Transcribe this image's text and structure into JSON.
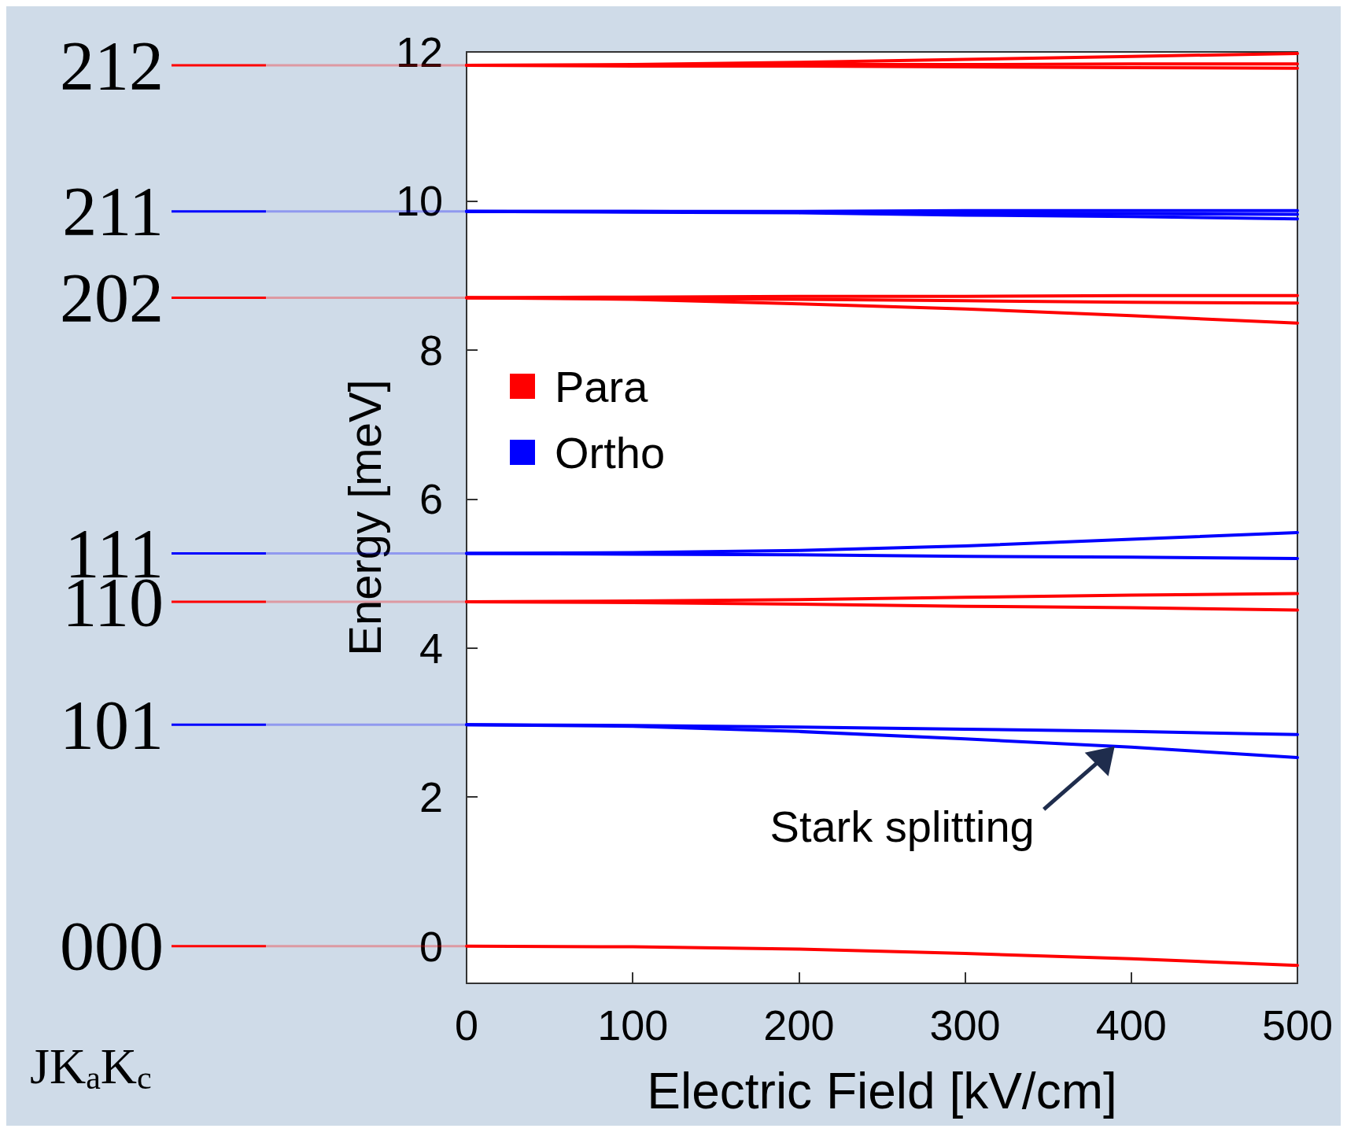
{
  "chart_data": {
    "type": "line",
    "xlabel": "Electric Field [kV/cm]",
    "ylabel": "Energy [meV]",
    "xlim": [
      0,
      500
    ],
    "xticks": [
      0,
      100,
      200,
      300,
      400,
      500
    ],
    "ylim": [
      -0.5,
      12
    ],
    "yticks": [
      0,
      2,
      4,
      6,
      8,
      10,
      12
    ],
    "grid": false,
    "legend": "top left",
    "marker": "none",
    "line_style": "solid",
    "x": [
      0,
      100,
      200,
      300,
      400,
      500
    ],
    "series": [
      {
        "name": "Para",
        "color": "#ff0000",
        "values": [
          0,
          -0.01,
          -0.04,
          -0.1,
          -0.17,
          -0.26
        ]
      },
      {
        "name": "Ortho",
        "color": "#0000ff",
        "values": [
          2.97,
          2.95,
          2.88,
          2.78,
          2.67,
          2.53
        ]
      },
      {
        "color": "#0000ff",
        "values": [
          2.97,
          2.96,
          2.94,
          2.91,
          2.88,
          2.84
        ]
      },
      {
        "color": "#ff0000",
        "values": [
          4.62,
          4.63,
          4.65,
          4.68,
          4.71,
          4.73
        ]
      },
      {
        "color": "#ff0000",
        "values": [
          4.62,
          4.61,
          4.59,
          4.56,
          4.54,
          4.51
        ]
      },
      {
        "color": "#0000ff",
        "values": [
          5.27,
          5.28,
          5.31,
          5.37,
          5.46,
          5.55
        ]
      },
      {
        "color": "#0000ff",
        "values": [
          5.27,
          5.26,
          5.25,
          5.23,
          5.22,
          5.2
        ]
      },
      {
        "color": "#ff0000",
        "values": [
          8.7,
          8.71,
          8.72,
          8.72,
          8.73,
          8.73
        ]
      },
      {
        "color": "#ff0000",
        "values": [
          8.7,
          8.69,
          8.68,
          8.66,
          8.64,
          8.63
        ]
      },
      {
        "color": "#ff0000",
        "values": [
          8.7,
          8.68,
          8.62,
          8.55,
          8.46,
          8.36
        ]
      },
      {
        "color": "#0000ff",
        "values": [
          9.86,
          9.86,
          9.86,
          9.87,
          9.87,
          9.87
        ]
      },
      {
        "color": "#0000ff",
        "values": [
          9.86,
          9.86,
          9.85,
          9.84,
          9.83,
          9.82
        ]
      },
      {
        "color": "#0000ff",
        "values": [
          9.86,
          9.85,
          9.84,
          9.81,
          9.79,
          9.76
        ]
      },
      {
        "color": "#ff0000",
        "values": [
          11.82,
          11.83,
          11.86,
          11.9,
          11.94,
          11.98
        ]
      },
      {
        "color": "#ff0000",
        "values": [
          11.82,
          11.82,
          11.83,
          11.83,
          11.84,
          11.84
        ]
      },
      {
        "color": "#ff0000",
        "values": [
          11.82,
          11.81,
          11.81,
          11.8,
          11.79,
          11.78
        ]
      }
    ],
    "annotations": [
      "000",
      "101",
      "110",
      "111",
      "202",
      "211",
      "212",
      "JK$_{a}$K$_{c}$",
      {
        "text": "Stark splitting",
        "x": 390,
        "y": 2.68
      }
    ]
  }
}
